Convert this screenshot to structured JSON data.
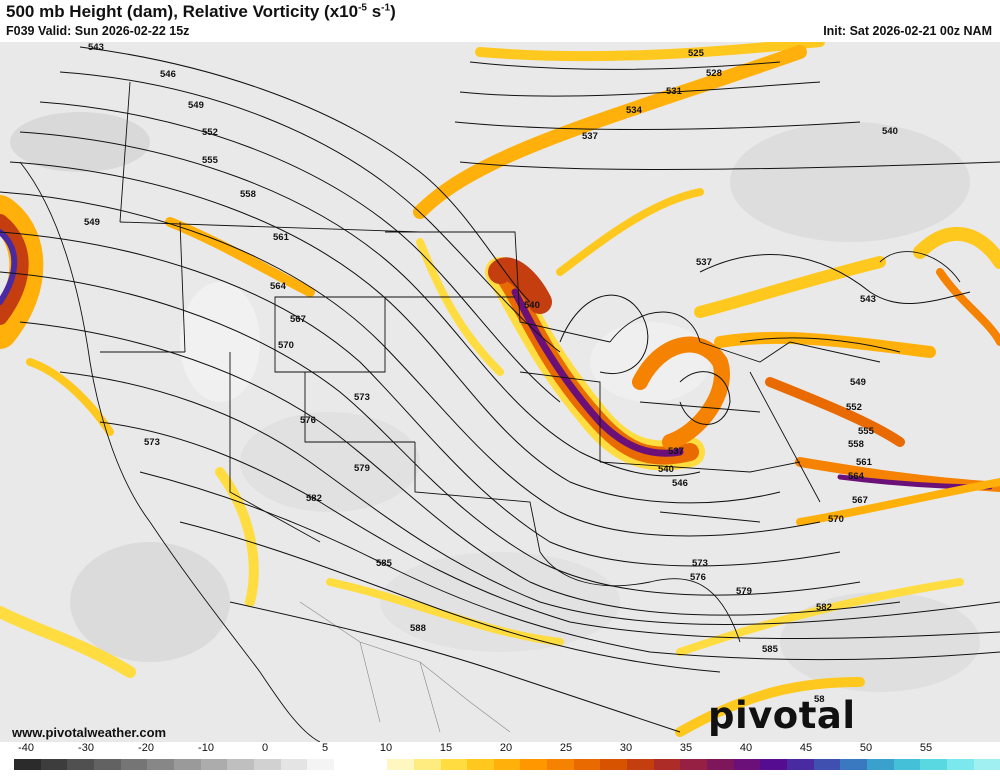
{
  "header": {
    "title_main": "500 mb Height (dam), Relative Vorticity (x10",
    "title_exp": "-5",
    "title_mid": " s",
    "title_exp2": "-1",
    "title_end": ")",
    "valid": "F039 Valid: Sun 2026-02-22 15z",
    "init": "Init: Sat 2026-02-21 00z NAM"
  },
  "map": {
    "contour_labels": [
      "543",
      "546",
      "549",
      "552",
      "555",
      "558",
      "561",
      "564",
      "567",
      "570",
      "573",
      "576",
      "579",
      "582",
      "585",
      "588",
      "525",
      "528",
      "531",
      "534",
      "537",
      "540",
      "537",
      "540",
      "543",
      "549",
      "552",
      "555",
      "558",
      "561",
      "564",
      "567",
      "570",
      "573",
      "576",
      "579",
      "582",
      "585",
      "546",
      "537",
      "540",
      "549",
      "573",
      "58"
    ],
    "city_lights": "none"
  },
  "footer": {
    "website": "www.pivotalweather.com",
    "brand": "pivotal weather"
  },
  "colorbar": {
    "labels": [
      "-40",
      "-30",
      "-20",
      "-10",
      "0",
      "5",
      "10",
      "15",
      "20",
      "25",
      "30",
      "35",
      "40",
      "45",
      "50",
      "55"
    ],
    "colors": [
      "#2b2b2b",
      "#3d3d3d",
      "#505050",
      "#626262",
      "#757575",
      "#878787",
      "#9a9a9a",
      "#acacac",
      "#bfbfbf",
      "#d1d1d1",
      "#e4e4e4",
      "#f4f4f4",
      "#ffffff",
      "#ffffff",
      "#fff7c0",
      "#ffec80",
      "#ffdc40",
      "#ffc81e",
      "#ffb00a",
      "#ff9800",
      "#f58200",
      "#e86a00",
      "#d85300",
      "#c43e10",
      "#ad2c28",
      "#962043",
      "#7e165c",
      "#6a1078",
      "#560c90",
      "#4a2aa0",
      "#4050b0",
      "#3a78c0",
      "#3aa0cc",
      "#44c0d8",
      "#5ad8e2",
      "#7ae8ec",
      "#a0f0f2"
    ]
  }
}
